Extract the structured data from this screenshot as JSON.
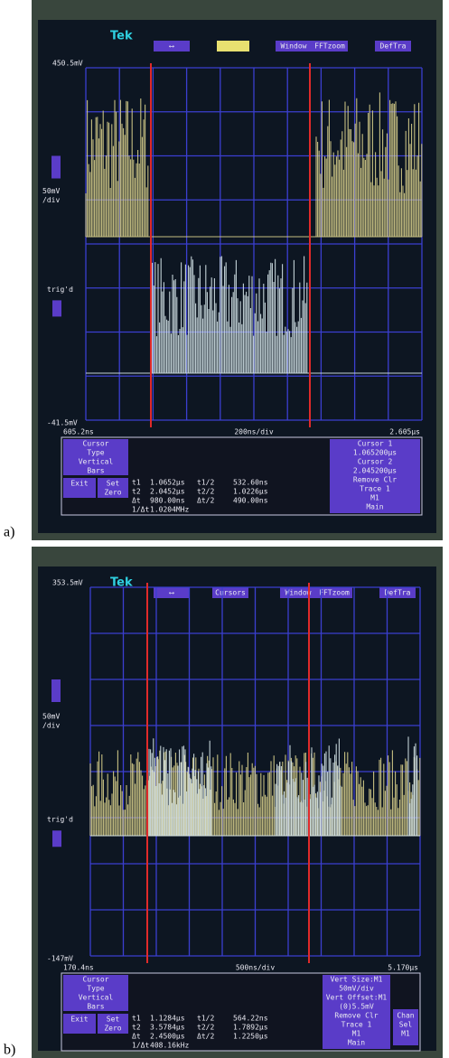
{
  "panels": [
    {
      "label": "a)",
      "brand": "Tek",
      "menu": [
        "⟷",
        "Window",
        "FFTzoom",
        "DefTra"
      ],
      "top_label": "450.5mV",
      "scale_label": [
        "50mV",
        "/div"
      ],
      "trig_label": "trig'd",
      "bottom_label": "-41.5mV",
      "time_left": "605.2ns",
      "timebase": "200ns/div",
      "time_right": "2.605μs",
      "left_menu": [
        "Cursor",
        "Type",
        "Vertical",
        "Bars"
      ],
      "buttons": [
        "Exit",
        "Set",
        "Zero"
      ],
      "readouts": [
        [
          "t1",
          "1.0652μs",
          "t1/2",
          "532.60ns"
        ],
        [
          "t2",
          "2.0452μs",
          "t2/2",
          "1.0226μs"
        ],
        [
          "Δt",
          "980.00ns",
          "Δt/2",
          "490.00ns"
        ],
        [
          "1/Δt",
          "1.0204MHz"
        ]
      ],
      "right_menu": [
        "Cursor 1",
        "1.065200μs",
        "Cursor 2",
        "2.045200μs",
        "Remove Clr",
        "Trace 1",
        "M1",
        "Main"
      ]
    },
    {
      "label": "b)",
      "brand": "Tek",
      "menu": [
        "⟷",
        "Cursors",
        "Window",
        "FFTzoom",
        "DefTra"
      ],
      "top_label": "353.5mV",
      "scale_label": [
        "50mV",
        "/div"
      ],
      "trig_label": "trig'd",
      "bottom_label": "-147mV",
      "time_left": "170.4ns",
      "timebase": "500ns/div",
      "time_right": "5.170μs",
      "left_menu": [
        "Cursor",
        "Type",
        "Vertical",
        "Bars"
      ],
      "buttons": [
        "Exit",
        "Set",
        "Zero"
      ],
      "readouts": [
        [
          "t1",
          "1.1284μs",
          "t1/2",
          "564.22ns"
        ],
        [
          "t2",
          "3.5784μs",
          "t2/2",
          "1.7892μs"
        ],
        [
          "Δt",
          "2.4500μs",
          "Δt/2",
          "1.2250μs"
        ],
        [
          "1/Δt",
          "408.16kHz"
        ]
      ],
      "right_menu": [
        "Vert Size:M1",
        "50mV/div",
        "Vert Offset:M1",
        "(0)5.5mV",
        "Remove Clr",
        "Trace 1",
        "M1",
        "Main"
      ],
      "right_menu_2": [
        "Chan",
        "Sel",
        "M1"
      ]
    }
  ]
}
